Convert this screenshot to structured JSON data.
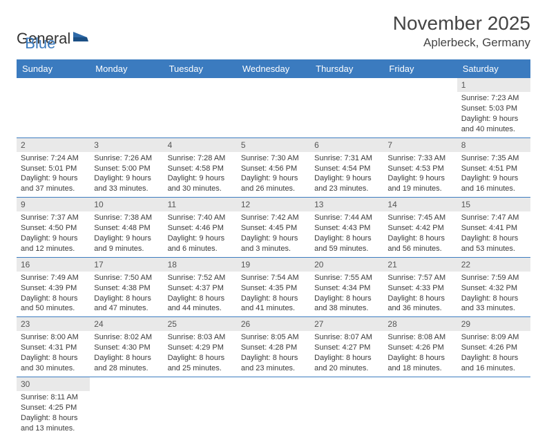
{
  "logo": {
    "part1": "General",
    "part2": "Blue"
  },
  "title": {
    "month": "November 2025",
    "location": "Aplerbeck, Germany"
  },
  "colors": {
    "header_bg": "#3b7bbf",
    "header_text": "#ffffff",
    "row_divider": "#3b7bbf",
    "daynum_bg": "#e9e9e9",
    "text": "#3a3a3a"
  },
  "dayNames": [
    "Sunday",
    "Monday",
    "Tuesday",
    "Wednesday",
    "Thursday",
    "Friday",
    "Saturday"
  ],
  "weeks": [
    [
      null,
      null,
      null,
      null,
      null,
      null,
      {
        "n": "1",
        "sunrise": "7:23 AM",
        "sunset": "5:03 PM",
        "daylight": "9 hours and 40 minutes."
      }
    ],
    [
      {
        "n": "2",
        "sunrise": "7:24 AM",
        "sunset": "5:01 PM",
        "daylight": "9 hours and 37 minutes."
      },
      {
        "n": "3",
        "sunrise": "7:26 AM",
        "sunset": "5:00 PM",
        "daylight": "9 hours and 33 minutes."
      },
      {
        "n": "4",
        "sunrise": "7:28 AM",
        "sunset": "4:58 PM",
        "daylight": "9 hours and 30 minutes."
      },
      {
        "n": "5",
        "sunrise": "7:30 AM",
        "sunset": "4:56 PM",
        "daylight": "9 hours and 26 minutes."
      },
      {
        "n": "6",
        "sunrise": "7:31 AM",
        "sunset": "4:54 PM",
        "daylight": "9 hours and 23 minutes."
      },
      {
        "n": "7",
        "sunrise": "7:33 AM",
        "sunset": "4:53 PM",
        "daylight": "9 hours and 19 minutes."
      },
      {
        "n": "8",
        "sunrise": "7:35 AM",
        "sunset": "4:51 PM",
        "daylight": "9 hours and 16 minutes."
      }
    ],
    [
      {
        "n": "9",
        "sunrise": "7:37 AM",
        "sunset": "4:50 PM",
        "daylight": "9 hours and 12 minutes."
      },
      {
        "n": "10",
        "sunrise": "7:38 AM",
        "sunset": "4:48 PM",
        "daylight": "9 hours and 9 minutes."
      },
      {
        "n": "11",
        "sunrise": "7:40 AM",
        "sunset": "4:46 PM",
        "daylight": "9 hours and 6 minutes."
      },
      {
        "n": "12",
        "sunrise": "7:42 AM",
        "sunset": "4:45 PM",
        "daylight": "9 hours and 3 minutes."
      },
      {
        "n": "13",
        "sunrise": "7:44 AM",
        "sunset": "4:43 PM",
        "daylight": "8 hours and 59 minutes."
      },
      {
        "n": "14",
        "sunrise": "7:45 AM",
        "sunset": "4:42 PM",
        "daylight": "8 hours and 56 minutes."
      },
      {
        "n": "15",
        "sunrise": "7:47 AM",
        "sunset": "4:41 PM",
        "daylight": "8 hours and 53 minutes."
      }
    ],
    [
      {
        "n": "16",
        "sunrise": "7:49 AM",
        "sunset": "4:39 PM",
        "daylight": "8 hours and 50 minutes."
      },
      {
        "n": "17",
        "sunrise": "7:50 AM",
        "sunset": "4:38 PM",
        "daylight": "8 hours and 47 minutes."
      },
      {
        "n": "18",
        "sunrise": "7:52 AM",
        "sunset": "4:37 PM",
        "daylight": "8 hours and 44 minutes."
      },
      {
        "n": "19",
        "sunrise": "7:54 AM",
        "sunset": "4:35 PM",
        "daylight": "8 hours and 41 minutes."
      },
      {
        "n": "20",
        "sunrise": "7:55 AM",
        "sunset": "4:34 PM",
        "daylight": "8 hours and 38 minutes."
      },
      {
        "n": "21",
        "sunrise": "7:57 AM",
        "sunset": "4:33 PM",
        "daylight": "8 hours and 36 minutes."
      },
      {
        "n": "22",
        "sunrise": "7:59 AM",
        "sunset": "4:32 PM",
        "daylight": "8 hours and 33 minutes."
      }
    ],
    [
      {
        "n": "23",
        "sunrise": "8:00 AM",
        "sunset": "4:31 PM",
        "daylight": "8 hours and 30 minutes."
      },
      {
        "n": "24",
        "sunrise": "8:02 AM",
        "sunset": "4:30 PM",
        "daylight": "8 hours and 28 minutes."
      },
      {
        "n": "25",
        "sunrise": "8:03 AM",
        "sunset": "4:29 PM",
        "daylight": "8 hours and 25 minutes."
      },
      {
        "n": "26",
        "sunrise": "8:05 AM",
        "sunset": "4:28 PM",
        "daylight": "8 hours and 23 minutes."
      },
      {
        "n": "27",
        "sunrise": "8:07 AM",
        "sunset": "4:27 PM",
        "daylight": "8 hours and 20 minutes."
      },
      {
        "n": "28",
        "sunrise": "8:08 AM",
        "sunset": "4:26 PM",
        "daylight": "8 hours and 18 minutes."
      },
      {
        "n": "29",
        "sunrise": "8:09 AM",
        "sunset": "4:26 PM",
        "daylight": "8 hours and 16 minutes."
      }
    ],
    [
      {
        "n": "30",
        "sunrise": "8:11 AM",
        "sunset": "4:25 PM",
        "daylight": "8 hours and 13 minutes."
      },
      null,
      null,
      null,
      null,
      null,
      null
    ]
  ],
  "labels": {
    "sunrise": "Sunrise: ",
    "sunset": "Sunset: ",
    "daylight": "Daylight: "
  }
}
